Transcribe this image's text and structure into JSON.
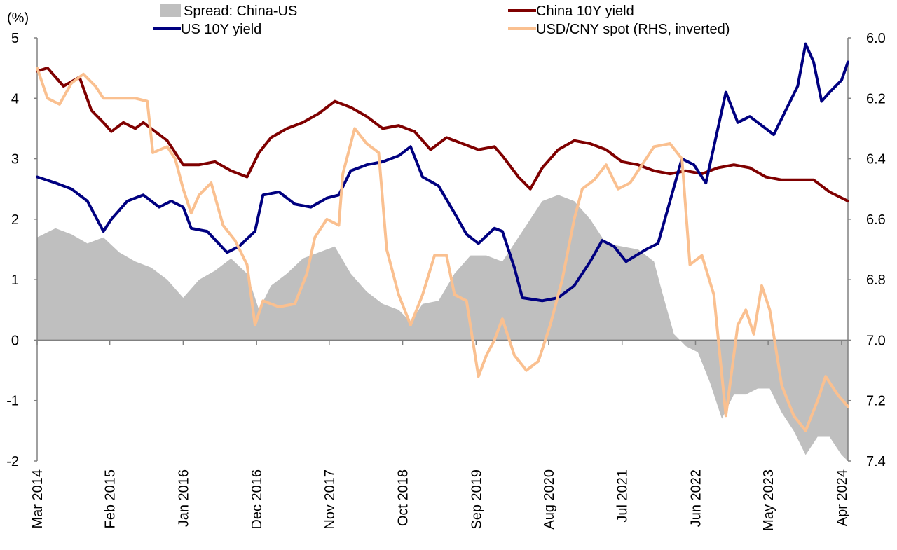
{
  "chart_data": {
    "type": "line",
    "title": "",
    "y_unit_label": "(%)",
    "y_left": {
      "min": -2,
      "max": 5,
      "ticks": [
        5,
        4,
        3,
        2,
        1,
        0,
        -1,
        -2
      ],
      "negative_color": "#cc0000"
    },
    "y_right": {
      "min": 6.0,
      "max": 7.4,
      "inverted": true,
      "ticks": [
        "6.0",
        "6.2",
        "6.4",
        "6.6",
        "6.8",
        "7.0",
        "7.2",
        "7.4"
      ]
    },
    "x_range": [
      2014.17,
      2024.33
    ],
    "x_ticks": [
      {
        "label": "Mar 2014",
        "t": 2014.17
      },
      {
        "label": "Feb 2015",
        "t": 2015.08
      },
      {
        "label": "Jan 2016",
        "t": 2016.0
      },
      {
        "label": "Dec 2016",
        "t": 2016.92
      },
      {
        "label": "Nov 2017",
        "t": 2017.83
      },
      {
        "label": "Oct 2018",
        "t": 2018.75
      },
      {
        "label": "Sep 2019",
        "t": 2019.67
      },
      {
        "label": "Aug 2020",
        "t": 2020.58
      },
      {
        "label": "Jul 2021",
        "t": 2021.5
      },
      {
        "label": "Jun 2022",
        "t": 2022.42
      },
      {
        "label": "May 2023",
        "t": 2023.33
      },
      {
        "label": "Apr 2024",
        "t": 2024.25
      }
    ],
    "legend": [
      {
        "key": "spread",
        "label": "Spread: China-US"
      },
      {
        "key": "china",
        "label": "China 10Y yield"
      },
      {
        "key": "us",
        "label": "US 10Y yield"
      },
      {
        "key": "usdcny",
        "label": "USD/CNY spot (RHS, inverted)"
      }
    ],
    "series": [
      {
        "key": "china",
        "name": "China 10Y yield",
        "color": "#7f0000",
        "axis": "left",
        "points": [
          [
            2014.17,
            4.45
          ],
          [
            2014.3,
            4.5
          ],
          [
            2014.5,
            4.2
          ],
          [
            2014.7,
            4.35
          ],
          [
            2014.85,
            3.8
          ],
          [
            2015.0,
            3.6
          ],
          [
            2015.1,
            3.45
          ],
          [
            2015.25,
            3.6
          ],
          [
            2015.4,
            3.5
          ],
          [
            2015.5,
            3.6
          ],
          [
            2015.65,
            3.45
          ],
          [
            2015.8,
            3.3
          ],
          [
            2015.9,
            3.1
          ],
          [
            2016.0,
            2.9
          ],
          [
            2016.2,
            2.9
          ],
          [
            2016.4,
            2.95
          ],
          [
            2016.6,
            2.8
          ],
          [
            2016.8,
            2.7
          ],
          [
            2016.95,
            3.1
          ],
          [
            2017.1,
            3.35
          ],
          [
            2017.3,
            3.5
          ],
          [
            2017.5,
            3.6
          ],
          [
            2017.7,
            3.75
          ],
          [
            2017.9,
            3.95
          ],
          [
            2018.1,
            3.85
          ],
          [
            2018.3,
            3.7
          ],
          [
            2018.5,
            3.5
          ],
          [
            2018.7,
            3.55
          ],
          [
            2018.9,
            3.45
          ],
          [
            2019.1,
            3.15
          ],
          [
            2019.3,
            3.35
          ],
          [
            2019.5,
            3.25
          ],
          [
            2019.7,
            3.15
          ],
          [
            2019.9,
            3.2
          ],
          [
            2020.0,
            3.05
          ],
          [
            2020.2,
            2.7
          ],
          [
            2020.35,
            2.5
          ],
          [
            2020.5,
            2.85
          ],
          [
            2020.7,
            3.15
          ],
          [
            2020.9,
            3.3
          ],
          [
            2021.1,
            3.25
          ],
          [
            2021.3,
            3.15
          ],
          [
            2021.5,
            2.95
          ],
          [
            2021.7,
            2.9
          ],
          [
            2021.9,
            2.8
          ],
          [
            2022.1,
            2.75
          ],
          [
            2022.3,
            2.8
          ],
          [
            2022.5,
            2.75
          ],
          [
            2022.7,
            2.85
          ],
          [
            2022.9,
            2.9
          ],
          [
            2023.1,
            2.85
          ],
          [
            2023.3,
            2.7
          ],
          [
            2023.5,
            2.65
          ],
          [
            2023.7,
            2.65
          ],
          [
            2023.9,
            2.65
          ],
          [
            2024.1,
            2.45
          ],
          [
            2024.33,
            2.3
          ]
        ]
      },
      {
        "key": "us",
        "name": "US 10Y yield",
        "color": "#000080",
        "axis": "left",
        "points": [
          [
            2014.17,
            2.7
          ],
          [
            2014.4,
            2.6
          ],
          [
            2014.6,
            2.5
          ],
          [
            2014.8,
            2.3
          ],
          [
            2015.0,
            1.8
          ],
          [
            2015.1,
            2.0
          ],
          [
            2015.3,
            2.3
          ],
          [
            2015.5,
            2.4
          ],
          [
            2015.7,
            2.2
          ],
          [
            2015.85,
            2.3
          ],
          [
            2016.0,
            2.2
          ],
          [
            2016.1,
            1.85
          ],
          [
            2016.3,
            1.8
          ],
          [
            2016.55,
            1.45
          ],
          [
            2016.7,
            1.55
          ],
          [
            2016.9,
            1.8
          ],
          [
            2017.0,
            2.4
          ],
          [
            2017.2,
            2.45
          ],
          [
            2017.4,
            2.25
          ],
          [
            2017.6,
            2.2
          ],
          [
            2017.8,
            2.35
          ],
          [
            2017.95,
            2.4
          ],
          [
            2018.1,
            2.8
          ],
          [
            2018.3,
            2.9
          ],
          [
            2018.5,
            2.95
          ],
          [
            2018.7,
            3.05
          ],
          [
            2018.85,
            3.2
          ],
          [
            2019.0,
            2.7
          ],
          [
            2019.2,
            2.55
          ],
          [
            2019.4,
            2.1
          ],
          [
            2019.55,
            1.75
          ],
          [
            2019.7,
            1.6
          ],
          [
            2019.9,
            1.85
          ],
          [
            2020.0,
            1.8
          ],
          [
            2020.15,
            1.2
          ],
          [
            2020.25,
            0.7
          ],
          [
            2020.5,
            0.65
          ],
          [
            2020.7,
            0.7
          ],
          [
            2020.9,
            0.9
          ],
          [
            2021.1,
            1.3
          ],
          [
            2021.25,
            1.65
          ],
          [
            2021.4,
            1.55
          ],
          [
            2021.55,
            1.3
          ],
          [
            2021.8,
            1.5
          ],
          [
            2021.95,
            1.6
          ],
          [
            2022.1,
            2.3
          ],
          [
            2022.25,
            3.0
          ],
          [
            2022.4,
            2.9
          ],
          [
            2022.55,
            2.6
          ],
          [
            2022.7,
            3.5
          ],
          [
            2022.8,
            4.1
          ],
          [
            2022.95,
            3.6
          ],
          [
            2023.1,
            3.7
          ],
          [
            2023.25,
            3.55
          ],
          [
            2023.4,
            3.4
          ],
          [
            2023.55,
            3.8
          ],
          [
            2023.7,
            4.2
          ],
          [
            2023.8,
            4.9
          ],
          [
            2023.9,
            4.6
          ],
          [
            2024.0,
            3.95
          ],
          [
            2024.1,
            4.1
          ],
          [
            2024.25,
            4.3
          ],
          [
            2024.33,
            4.6
          ]
        ]
      },
      {
        "key": "usdcny",
        "name": "USD/CNY spot (RHS, inverted)",
        "color": "#fac090",
        "axis": "right",
        "points": [
          [
            2014.17,
            6.1
          ],
          [
            2014.3,
            6.2
          ],
          [
            2014.45,
            6.22
          ],
          [
            2014.6,
            6.15
          ],
          [
            2014.75,
            6.12
          ],
          [
            2014.9,
            6.16
          ],
          [
            2015.0,
            6.2
          ],
          [
            2015.2,
            6.2
          ],
          [
            2015.4,
            6.2
          ],
          [
            2015.55,
            6.21
          ],
          [
            2015.62,
            6.38
          ],
          [
            2015.8,
            6.36
          ],
          [
            2015.9,
            6.4
          ],
          [
            2016.0,
            6.5
          ],
          [
            2016.1,
            6.58
          ],
          [
            2016.2,
            6.52
          ],
          [
            2016.35,
            6.48
          ],
          [
            2016.5,
            6.62
          ],
          [
            2016.65,
            6.67
          ],
          [
            2016.8,
            6.75
          ],
          [
            2016.9,
            6.95
          ],
          [
            2017.0,
            6.87
          ],
          [
            2017.2,
            6.89
          ],
          [
            2017.4,
            6.88
          ],
          [
            2017.55,
            6.78
          ],
          [
            2017.65,
            6.66
          ],
          [
            2017.8,
            6.6
          ],
          [
            2017.95,
            6.62
          ],
          [
            2018.0,
            6.45
          ],
          [
            2018.15,
            6.3
          ],
          [
            2018.3,
            6.35
          ],
          [
            2018.45,
            6.38
          ],
          [
            2018.55,
            6.7
          ],
          [
            2018.7,
            6.85
          ],
          [
            2018.85,
            6.95
          ],
          [
            2019.0,
            6.85
          ],
          [
            2019.15,
            6.72
          ],
          [
            2019.3,
            6.72
          ],
          [
            2019.4,
            6.85
          ],
          [
            2019.55,
            6.87
          ],
          [
            2019.7,
            7.12
          ],
          [
            2019.8,
            7.05
          ],
          [
            2019.9,
            7.0
          ],
          [
            2020.0,
            6.93
          ],
          [
            2020.15,
            7.05
          ],
          [
            2020.3,
            7.1
          ],
          [
            2020.45,
            7.07
          ],
          [
            2020.6,
            6.95
          ],
          [
            2020.75,
            6.8
          ],
          [
            2020.9,
            6.6
          ],
          [
            2021.0,
            6.5
          ],
          [
            2021.15,
            6.47
          ],
          [
            2021.3,
            6.42
          ],
          [
            2021.45,
            6.5
          ],
          [
            2021.6,
            6.48
          ],
          [
            2021.75,
            6.42
          ],
          [
            2021.9,
            6.36
          ],
          [
            2022.1,
            6.35
          ],
          [
            2022.25,
            6.4
          ],
          [
            2022.35,
            6.75
          ],
          [
            2022.5,
            6.72
          ],
          [
            2022.65,
            6.85
          ],
          [
            2022.8,
            7.25
          ],
          [
            2022.95,
            6.95
          ],
          [
            2023.05,
            6.9
          ],
          [
            2023.15,
            6.98
          ],
          [
            2023.25,
            6.82
          ],
          [
            2023.35,
            6.9
          ],
          [
            2023.5,
            7.15
          ],
          [
            2023.65,
            7.25
          ],
          [
            2023.8,
            7.3
          ],
          [
            2023.95,
            7.2
          ],
          [
            2024.05,
            7.12
          ],
          [
            2024.2,
            7.18
          ],
          [
            2024.33,
            7.22
          ]
        ]
      },
      {
        "key": "spread",
        "name": "Spread: China-US",
        "color": "#bfbfbf",
        "axis": "left",
        "style": "area",
        "points": [
          [
            2014.17,
            1.7
          ],
          [
            2014.4,
            1.85
          ],
          [
            2014.6,
            1.75
          ],
          [
            2014.8,
            1.6
          ],
          [
            2015.0,
            1.7
          ],
          [
            2015.2,
            1.45
          ],
          [
            2015.4,
            1.3
          ],
          [
            2015.6,
            1.2
          ],
          [
            2015.8,
            1.0
          ],
          [
            2016.0,
            0.7
          ],
          [
            2016.2,
            1.0
          ],
          [
            2016.4,
            1.15
          ],
          [
            2016.6,
            1.35
          ],
          [
            2016.8,
            1.1
          ],
          [
            2016.95,
            0.5
          ],
          [
            2017.1,
            0.9
          ],
          [
            2017.3,
            1.1
          ],
          [
            2017.5,
            1.35
          ],
          [
            2017.7,
            1.45
          ],
          [
            2017.9,
            1.55
          ],
          [
            2018.1,
            1.1
          ],
          [
            2018.3,
            0.8
          ],
          [
            2018.5,
            0.6
          ],
          [
            2018.7,
            0.5
          ],
          [
            2018.85,
            0.3
          ],
          [
            2019.0,
            0.6
          ],
          [
            2019.2,
            0.65
          ],
          [
            2019.4,
            1.1
          ],
          [
            2019.6,
            1.4
          ],
          [
            2019.8,
            1.4
          ],
          [
            2020.0,
            1.3
          ],
          [
            2020.15,
            1.6
          ],
          [
            2020.3,
            1.9
          ],
          [
            2020.5,
            2.3
          ],
          [
            2020.7,
            2.4
          ],
          [
            2020.9,
            2.3
          ],
          [
            2021.1,
            2.0
          ],
          [
            2021.3,
            1.6
          ],
          [
            2021.5,
            1.55
          ],
          [
            2021.7,
            1.5
          ],
          [
            2021.9,
            1.3
          ],
          [
            2022.0,
            0.8
          ],
          [
            2022.15,
            0.1
          ],
          [
            2022.3,
            -0.1
          ],
          [
            2022.45,
            -0.2
          ],
          [
            2022.6,
            -0.7
          ],
          [
            2022.75,
            -1.3
          ],
          [
            2022.9,
            -0.9
          ],
          [
            2023.05,
            -0.9
          ],
          [
            2023.2,
            -0.8
          ],
          [
            2023.35,
            -0.8
          ],
          [
            2023.5,
            -1.2
          ],
          [
            2023.65,
            -1.5
          ],
          [
            2023.8,
            -1.9
          ],
          [
            2023.95,
            -1.6
          ],
          [
            2024.1,
            -1.6
          ],
          [
            2024.25,
            -1.9
          ],
          [
            2024.33,
            -2.0
          ]
        ]
      }
    ]
  }
}
